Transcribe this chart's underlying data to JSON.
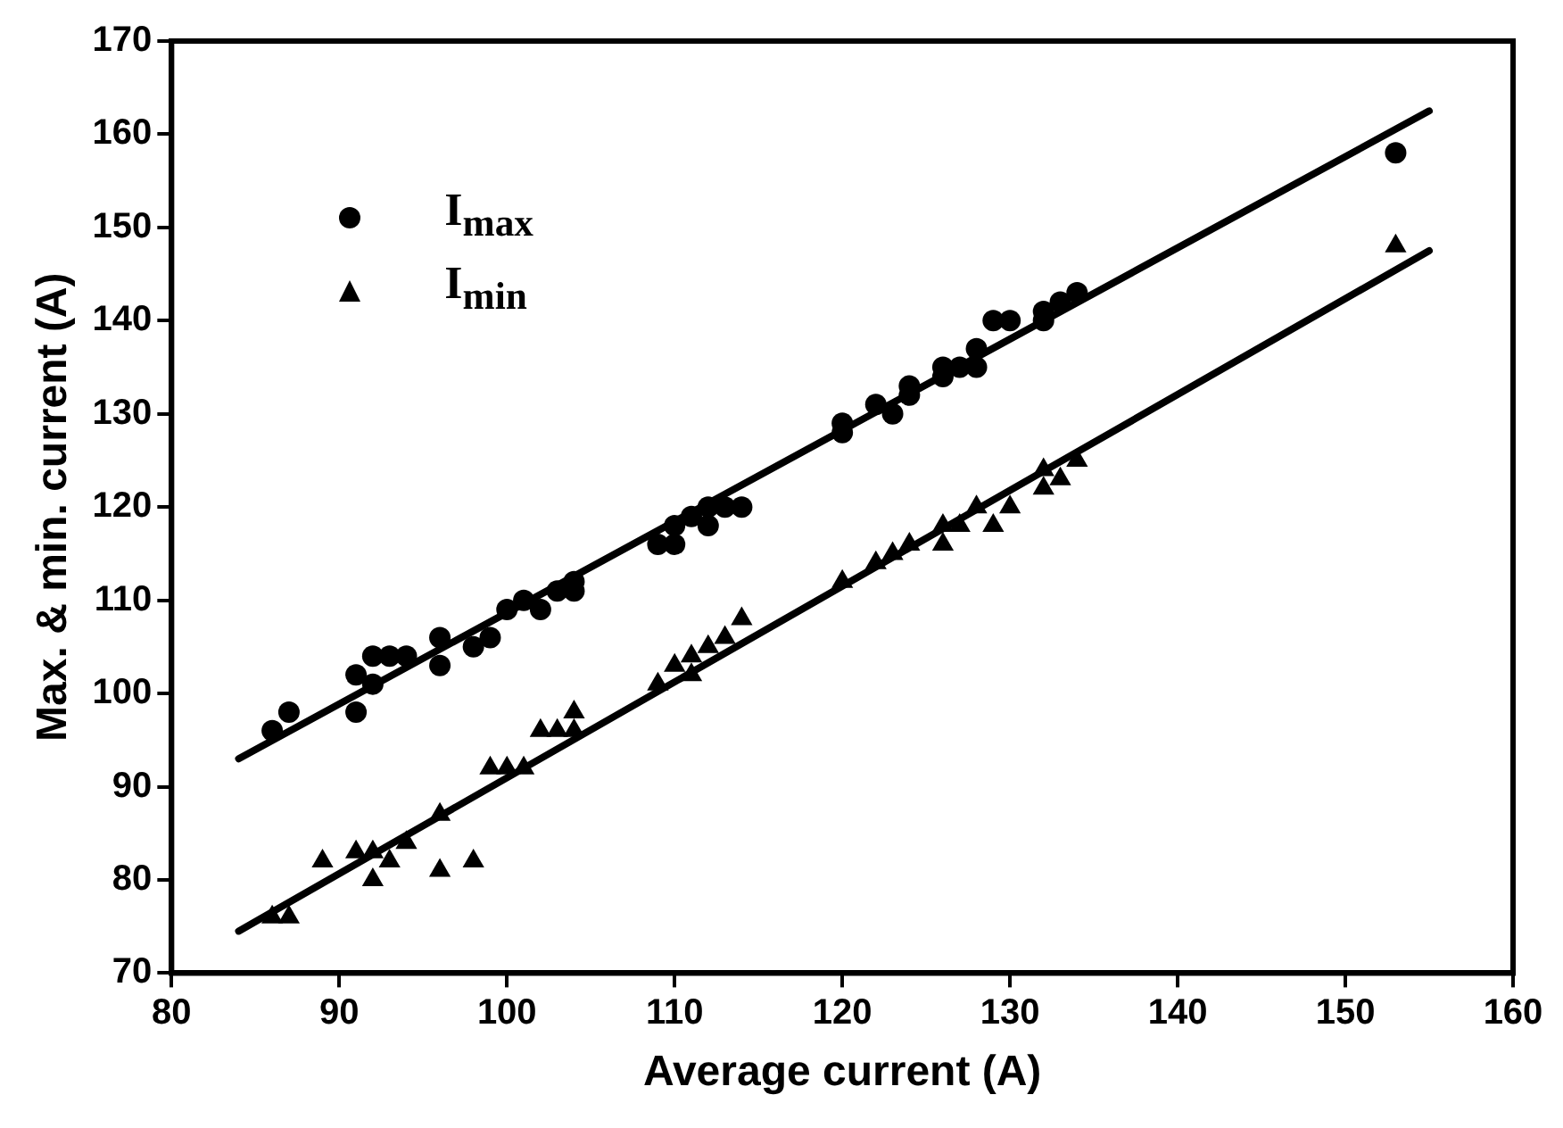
{
  "chart_data": {
    "type": "scatter",
    "xlabel": "Average current (A)",
    "ylabel": "Max. & min. current (A)",
    "xlim": [
      80,
      160
    ],
    "xticks": [
      80,
      90,
      100,
      110,
      120,
      130,
      140,
      150,
      160
    ],
    "ylim": [
      70,
      170
    ],
    "yticks": [
      70,
      80,
      90,
      100,
      110,
      120,
      130,
      140,
      150,
      160,
      170
    ],
    "grid": false,
    "legend": "top left",
    "series": [
      {
        "name": "I$_{max}$",
        "type": "scatter",
        "marker": "circle",
        "color": "#000000",
        "x": [
          86,
          87,
          91,
          91,
          92,
          92,
          93,
          94,
          96,
          96,
          98,
          99,
          100,
          101,
          102,
          103,
          104,
          104,
          109,
          110,
          110,
          111,
          112,
          112,
          113,
          114,
          120,
          120,
          122,
          123,
          124,
          124,
          126,
          126,
          127,
          128,
          128,
          129,
          130,
          132,
          132,
          133,
          134,
          153
        ],
        "values": [
          96,
          98,
          102,
          98,
          101,
          104,
          104,
          104,
          103,
          106,
          105,
          106,
          109,
          110,
          109,
          111,
          111,
          112,
          116,
          116,
          118,
          119,
          118,
          120,
          120,
          120,
          128,
          129,
          131,
          130,
          133,
          132,
          134,
          135,
          135,
          135,
          137,
          140,
          140,
          140,
          141,
          142,
          143,
          158
        ]
      },
      {
        "name": "I$_{min}$",
        "type": "scatter",
        "marker": "triangle",
        "color": "#000000",
        "x": [
          86,
          87,
          89,
          91,
          92,
          92,
          93,
          94,
          96,
          96,
          98,
          99,
          100,
          101,
          102,
          103,
          104,
          104,
          109,
          110,
          111,
          111,
          112,
          113,
          114,
          120,
          122,
          123,
          124,
          126,
          126,
          127,
          128,
          129,
          130,
          132,
          132,
          133,
          134,
          153
        ],
        "values": [
          76,
          76,
          82,
          83,
          80,
          83,
          82,
          84,
          87,
          81,
          82,
          92,
          92,
          92,
          96,
          96,
          98,
          96,
          101,
          103,
          102,
          104,
          105,
          106,
          108,
          112,
          114,
          115,
          116,
          116,
          118,
          118,
          120,
          118,
          120,
          122,
          124,
          123,
          125,
          148
        ]
      },
      {
        "type": "line",
        "marker": "none",
        "line_style": "solid",
        "color": "#000000",
        "x": [
          84,
          155
        ],
        "values": [
          93,
          162.5
        ]
      },
      {
        "type": "line",
        "marker": "none",
        "line_style": "solid",
        "color": "#000000",
        "x": [
          84,
          155
        ],
        "values": [
          74.5,
          147.5
        ]
      }
    ]
  }
}
